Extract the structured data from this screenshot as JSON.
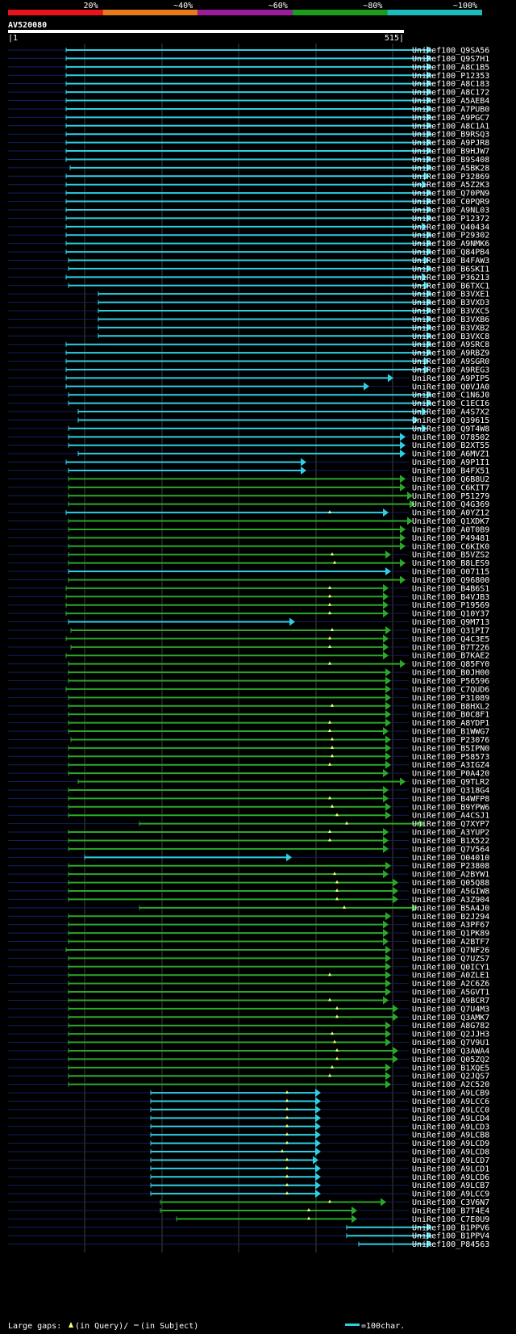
{
  "query": {
    "name": "AV520080",
    "start_label": "1",
    "end_label": "515",
    "length": 515
  },
  "legend_bar": {
    "labels": [
      "20%",
      "~40%",
      "~60%",
      "~80%",
      "~100%"
    ],
    "colors": [
      "#e8141c",
      "#e87a1c",
      "#9c1c9c",
      "#1c9c1c",
      "#1cbcbc"
    ]
  },
  "identity_colors": {
    "cyan": "#2ecfe6",
    "green": "#2aa82a",
    "gap_marker": "#ffff80",
    "row_line": "#102060",
    "grid": "#404040"
  },
  "footer": {
    "gaps_prefix": "Large gaps:",
    "in_query": "(in Query)/",
    "in_subject": "(in Subject)",
    "scale_text": "=100char."
  },
  "hits": [
    {
      "name": "UniRef100_Q9SA56",
      "s": 82,
      "e": 530,
      "c": "cyan"
    },
    {
      "name": "UniRef100_Q9S7H1",
      "s": 82,
      "e": 530,
      "c": "cyan"
    },
    {
      "name": "UniRef100_A8C1B5",
      "s": 82,
      "e": 530,
      "c": "cyan"
    },
    {
      "name": "UniRef100_P12353",
      "s": 82,
      "e": 530,
      "c": "cyan"
    },
    {
      "name": "UniRef100_A8C183",
      "s": 82,
      "e": 530,
      "c": "cyan"
    },
    {
      "name": "UniRef100_A8C172",
      "s": 82,
      "e": 530,
      "c": "cyan"
    },
    {
      "name": "UniRef100_A5AEB4",
      "s": 82,
      "e": 530,
      "c": "cyan"
    },
    {
      "name": "UniRef100_A7PUB0",
      "s": 82,
      "e": 530,
      "c": "cyan"
    },
    {
      "name": "UniRef100_A9PGC7",
      "s": 82,
      "e": 530,
      "c": "cyan"
    },
    {
      "name": "UniRef100_A8C1A1",
      "s": 82,
      "e": 530,
      "c": "cyan"
    },
    {
      "name": "UniRef100_B9RSQ3",
      "s": 82,
      "e": 530,
      "c": "cyan"
    },
    {
      "name": "UniRef100_A9PJR8",
      "s": 82,
      "e": 530,
      "c": "cyan"
    },
    {
      "name": "UniRef100_B9HJW7",
      "s": 82,
      "e": 530,
      "c": "cyan"
    },
    {
      "name": "UniRef100_B9S408",
      "s": 82,
      "e": 530,
      "c": "cyan"
    },
    {
      "name": "UniRef100_A5BK28",
      "s": 87,
      "e": 530,
      "c": "cyan"
    },
    {
      "name": "UniRef100_P32869",
      "s": 82,
      "e": 527,
      "c": "cyan"
    },
    {
      "name": "UniRef100_A5Z2K3",
      "s": 82,
      "e": 524,
      "c": "cyan"
    },
    {
      "name": "UniRef100_Q70PN9",
      "s": 82,
      "e": 530,
      "c": "cyan"
    },
    {
      "name": "UniRef100_C0PQR9",
      "s": 82,
      "e": 530,
      "c": "cyan"
    },
    {
      "name": "UniRef100_A9NL03",
      "s": 82,
      "e": 530,
      "c": "cyan"
    },
    {
      "name": "UniRef100_P12372",
      "s": 82,
      "e": 530,
      "c": "cyan"
    },
    {
      "name": "UniRef100_Q40434",
      "s": 82,
      "e": 524,
      "c": "cyan"
    },
    {
      "name": "UniRef100_P29302",
      "s": 82,
      "e": 530,
      "c": "cyan"
    },
    {
      "name": "UniRef100_A9NMK6",
      "s": 82,
      "e": 530,
      "c": "cyan"
    },
    {
      "name": "UniRef100_Q84PB4",
      "s": 82,
      "e": 530,
      "c": "cyan"
    },
    {
      "name": "UniRef100_B4FAW3",
      "s": 85,
      "e": 527,
      "c": "cyan"
    },
    {
      "name": "UniRef100_B6SKI1",
      "s": 85,
      "e": 530,
      "c": "cyan"
    },
    {
      "name": "UniRef100_P36213",
      "s": 82,
      "e": 524,
      "c": "cyan"
    },
    {
      "name": "UniRef100_B6TXC1",
      "s": 85,
      "e": 527,
      "c": "cyan"
    },
    {
      "name": "UniRef100_B3VXE1",
      "s": 122,
      "e": 530,
      "c": "cyan"
    },
    {
      "name": "UniRef100_B3VXD3",
      "s": 122,
      "e": 530,
      "c": "cyan"
    },
    {
      "name": "UniRef100_B3VXC5",
      "s": 122,
      "e": 530,
      "c": "cyan"
    },
    {
      "name": "UniRef100_B3VXB6",
      "s": 122,
      "e": 530,
      "c": "cyan"
    },
    {
      "name": "UniRef100_B3VXB2",
      "s": 122,
      "e": 530,
      "c": "cyan"
    },
    {
      "name": "UniRef100_B3VXC8",
      "s": 122,
      "e": 530,
      "c": "cyan"
    },
    {
      "name": "UniRef100_A9SRC8",
      "s": 82,
      "e": 530,
      "c": "cyan"
    },
    {
      "name": "UniRef100_A9RBZ9",
      "s": 82,
      "e": 530,
      "c": "cyan"
    },
    {
      "name": "UniRef100_A9SGR0",
      "s": 82,
      "e": 527,
      "c": "cyan"
    },
    {
      "name": "UniRef100_A9REG3",
      "s": 82,
      "e": 527,
      "c": "cyan"
    },
    {
      "name": "UniRef100_A9PIP5",
      "s": 82,
      "e": 482,
      "c": "cyan"
    },
    {
      "name": "UniRef100_Q0VJA0",
      "s": 82,
      "e": 452,
      "c": "cyan"
    },
    {
      "name": "UniRef100_C1N6J0",
      "s": 85,
      "e": 530,
      "c": "cyan"
    },
    {
      "name": "UniRef100_C1ECI6",
      "s": 85,
      "e": 530,
      "c": "cyan"
    },
    {
      "name": "UniRef100_A4S7X2",
      "s": 97,
      "e": 524,
      "c": "cyan"
    },
    {
      "name": "UniRef100_Q39615",
      "s": 97,
      "e": 513,
      "c": "cyan"
    },
    {
      "name": "UniRef100_Q9T4W8",
      "s": 85,
      "e": 524,
      "c": "cyan"
    },
    {
      "name": "UniRef100_O78502",
      "s": 85,
      "e": 497,
      "c": "cyan"
    },
    {
      "name": "UniRef100_B2XT55",
      "s": 85,
      "e": 497,
      "c": "cyan"
    },
    {
      "name": "UniRef100_A6MVZ1",
      "s": 97,
      "e": 497,
      "c": "cyan"
    },
    {
      "name": "UniRef100_A9P1I1",
      "s": 82,
      "e": 374,
      "c": "cyan"
    },
    {
      "name": "UniRef100_B4FX51",
      "s": 85,
      "e": 374,
      "c": "cyan"
    },
    {
      "name": "UniRef100_Q6B8U2",
      "s": 85,
      "e": 497,
      "c": "green"
    },
    {
      "name": "UniRef100_C6KIT7",
      "s": 85,
      "e": 497,
      "c": "green"
    },
    {
      "name": "UniRef100_P51279",
      "s": 85,
      "e": 506,
      "c": "green"
    },
    {
      "name": "UniRef100_Q4G369",
      "s": 85,
      "e": 509,
      "c": "green"
    },
    {
      "name": "UniRef100_A0YZ12",
      "s": 82,
      "e": 476,
      "c": "cyan",
      "gap": 409
    },
    {
      "name": "UniRef100_Q1XDK7",
      "s": 85,
      "e": 506,
      "c": "green"
    },
    {
      "name": "UniRef100_A0T0B9",
      "s": 85,
      "e": 497,
      "c": "green"
    },
    {
      "name": "UniRef100_P49481",
      "s": 85,
      "e": 497,
      "c": "green"
    },
    {
      "name": "UniRef100_C6KIK0",
      "s": 85,
      "e": 497,
      "c": "green"
    },
    {
      "name": "UniRef100_B5VZS2",
      "s": 85,
      "e": 479,
      "c": "green",
      "gap": 412
    },
    {
      "name": "UniRef100_B8LES9",
      "s": 85,
      "e": 497,
      "c": "green",
      "gap": 415
    },
    {
      "name": "UniRef100_O07115",
      "s": 85,
      "e": 479,
      "c": "cyan"
    },
    {
      "name": "UniRef100_Q96800",
      "s": 85,
      "e": 497,
      "c": "green"
    },
    {
      "name": "UniRef100_B4B6S1",
      "s": 82,
      "e": 476,
      "c": "green",
      "gap": 409
    },
    {
      "name": "UniRef100_B4VJB3",
      "s": 82,
      "e": 476,
      "c": "green",
      "gap": 409
    },
    {
      "name": "UniRef100_P19569",
      "s": 82,
      "e": 476,
      "c": "green",
      "gap": 409
    },
    {
      "name": "UniRef100_Q10Y37",
      "s": 82,
      "e": 476,
      "c": "green",
      "gap": 409
    },
    {
      "name": "UniRef100_Q9M713",
      "s": 85,
      "e": 360,
      "c": "cyan"
    },
    {
      "name": "UniRef100_Q31PI7",
      "s": 88,
      "e": 479,
      "c": "green",
      "gap": 412
    },
    {
      "name": "UniRef100_Q4C3E5",
      "s": 82,
      "e": 476,
      "c": "green",
      "gap": 409
    },
    {
      "name": "UniRef100_B7T226",
      "s": 88,
      "e": 476,
      "c": "green",
      "gap": 409
    },
    {
      "name": "UniRef100_B7KAE2",
      "s": 82,
      "e": 476,
      "c": "green"
    },
    {
      "name": "UniRef100_Q85FY0",
      "s": 85,
      "e": 497,
      "c": "green",
      "gap": 409
    },
    {
      "name": "UniRef100_B0JH00",
      "s": 85,
      "e": 479,
      "c": "green"
    },
    {
      "name": "UniRef100_P56596",
      "s": 85,
      "e": 479,
      "c": "green"
    },
    {
      "name": "UniRef100_C7QUD6",
      "s": 82,
      "e": 479,
      "c": "green"
    },
    {
      "name": "UniRef100_P31089",
      "s": 85,
      "e": 479,
      "c": "green"
    },
    {
      "name": "UniRef100_B8HXL2",
      "s": 85,
      "e": 479,
      "c": "green",
      "gap": 412
    },
    {
      "name": "UniRef100_B0C8F1",
      "s": 85,
      "e": 479,
      "c": "green"
    },
    {
      "name": "UniRef100_A8YDP1",
      "s": 85,
      "e": 479,
      "c": "green",
      "gap": 409
    },
    {
      "name": "UniRef100_B1WWG7",
      "s": 85,
      "e": 476,
      "c": "green",
      "gap": 409
    },
    {
      "name": "UniRef100_P23076",
      "s": 88,
      "e": 479,
      "c": "green",
      "gap": 412
    },
    {
      "name": "UniRef100_B5IPN0",
      "s": 85,
      "e": 479,
      "c": "green",
      "gap": 412
    },
    {
      "name": "UniRef100_P58573",
      "s": 85,
      "e": 479,
      "c": "green",
      "gap": 412
    },
    {
      "name": "UniRef100_A3IGZ4",
      "s": 85,
      "e": 479,
      "c": "green",
      "gap": 409
    },
    {
      "name": "UniRef100_P0A420",
      "s": 85,
      "e": 476,
      "c": "green"
    },
    {
      "name": "UniRef100_Q9TLR2",
      "s": 97,
      "e": 497,
      "c": "green"
    },
    {
      "name": "UniRef100_Q318G4",
      "s": 85,
      "e": 476,
      "c": "green"
    },
    {
      "name": "UniRef100_B4WFP8",
      "s": 85,
      "e": 476,
      "c": "green",
      "gap": 409
    },
    {
      "name": "UniRef100_B9YPW6",
      "s": 85,
      "e": 479,
      "c": "green",
      "gap": 412
    },
    {
      "name": "UniRef100_A4CSJ1",
      "s": 85,
      "e": 479,
      "c": "green",
      "gap": 418
    },
    {
      "name": "UniRef100_Q7XYP7",
      "s": 173,
      "e": 521,
      "c": "green",
      "gap": 430
    },
    {
      "name": "UniRef100_A3YUP2",
      "s": 85,
      "e": 476,
      "c": "green",
      "gap": 409
    },
    {
      "name": "UniRef100_B1X522",
      "s": 85,
      "e": 476,
      "c": "green",
      "gap": 409
    },
    {
      "name": "UniRef100_Q7V564",
      "s": 85,
      "e": 476,
      "c": "green"
    },
    {
      "name": "UniRef100_O04010",
      "s": 105,
      "e": 356,
      "c": "cyan"
    },
    {
      "name": "UniRef100_P23808",
      "s": 85,
      "e": 479,
      "c": "green"
    },
    {
      "name": "UniRef100_A2BYW1",
      "s": 85,
      "e": 476,
      "c": "green",
      "gap": 415
    },
    {
      "name": "UniRef100_Q05Q88",
      "s": 85,
      "e": 488,
      "c": "green",
      "gap": 418
    },
    {
      "name": "UniRef100_A5GIW8",
      "s": 85,
      "e": 488,
      "c": "green",
      "gap": 418
    },
    {
      "name": "UniRef100_A3Z904",
      "s": 85,
      "e": 488,
      "c": "green",
      "gap": 418
    },
    {
      "name": "UniRef100_B5A4J0",
      "s": 173,
      "e": 512,
      "c": "green",
      "gap": 427
    },
    {
      "name": "UniRef100_B2J294",
      "s": 85,
      "e": 479,
      "c": "green"
    },
    {
      "name": "UniRef100_A3PF67",
      "s": 85,
      "e": 476,
      "c": "green"
    },
    {
      "name": "UniRef100_Q1PK89",
      "s": 85,
      "e": 476,
      "c": "green"
    },
    {
      "name": "UniRef100_A2BTF7",
      "s": 85,
      "e": 476,
      "c": "green"
    },
    {
      "name": "UniRef100_Q7NF26",
      "s": 82,
      "e": 479,
      "c": "green"
    },
    {
      "name": "UniRef100_Q7UZS7",
      "s": 85,
      "e": 479,
      "c": "green"
    },
    {
      "name": "UniRef100_Q0ICY1",
      "s": 85,
      "e": 479,
      "c": "green"
    },
    {
      "name": "UniRef100_A0ZLE1",
      "s": 85,
      "e": 479,
      "c": "green",
      "gap": 409
    },
    {
      "name": "UniRef100_A2C6Z6",
      "s": 85,
      "e": 479,
      "c": "green"
    },
    {
      "name": "UniRef100_A5GVT1",
      "s": 85,
      "e": 479,
      "c": "green"
    },
    {
      "name": "UniRef100_A9BCR7",
      "s": 85,
      "e": 476,
      "c": "green",
      "gap": 409
    },
    {
      "name": "UniRef100_Q7U4M3",
      "s": 85,
      "e": 488,
      "c": "green",
      "gap": 418
    },
    {
      "name": "UniRef100_Q3AMK7",
      "s": 85,
      "e": 488,
      "c": "green",
      "gap": 418
    },
    {
      "name": "UniRef100_A8G782",
      "s": 85,
      "e": 479,
      "c": "green"
    },
    {
      "name": "UniRef100_Q2JJH3",
      "s": 85,
      "e": 479,
      "c": "green",
      "gap": 412
    },
    {
      "name": "UniRef100_Q7V9U1",
      "s": 85,
      "e": 479,
      "c": "green",
      "gap": 415
    },
    {
      "name": "UniRef100_Q3AWA4",
      "s": 85,
      "e": 488,
      "c": "green",
      "gap": 418
    },
    {
      "name": "UniRef100_Q05ZQ2",
      "s": 85,
      "e": 488,
      "c": "green",
      "gap": 418
    },
    {
      "name": "UniRef100_B1XQE5",
      "s": 85,
      "e": 479,
      "c": "green",
      "gap": 412
    },
    {
      "name": "UniRef100_Q2JQS7",
      "s": 85,
      "e": 479,
      "c": "green",
      "gap": 409
    },
    {
      "name": "UniRef100_A2C520",
      "s": 85,
      "e": 479,
      "c": "green"
    },
    {
      "name": "UniRef100_A9LCB9",
      "s": 187,
      "e": 392,
      "c": "cyan",
      "gap": 356
    },
    {
      "name": "UniRef100_A9LCC6",
      "s": 187,
      "e": 392,
      "c": "cyan",
      "gap": 356
    },
    {
      "name": "UniRef100_A9LCC0",
      "s": 187,
      "e": 392,
      "c": "cyan",
      "gap": 356
    },
    {
      "name": "UniRef100_A9LCD4",
      "s": 187,
      "e": 392,
      "c": "cyan",
      "gap": 356
    },
    {
      "name": "UniRef100_A9LCD3",
      "s": 187,
      "e": 392,
      "c": "cyan",
      "gap": 356
    },
    {
      "name": "UniRef100_A9LCB8",
      "s": 187,
      "e": 392,
      "c": "cyan",
      "gap": 356
    },
    {
      "name": "UniRef100_A9LCD9",
      "s": 187,
      "e": 392,
      "c": "cyan",
      "gap": 356
    },
    {
      "name": "UniRef100_A9LCD8",
      "s": 187,
      "e": 392,
      "c": "cyan",
      "gap": 350
    },
    {
      "name": "UniRef100_A9LCD7",
      "s": 187,
      "e": 389,
      "c": "cyan",
      "gap": 356
    },
    {
      "name": "UniRef100_A9LCD1",
      "s": 187,
      "e": 392,
      "c": "cyan",
      "gap": 356
    },
    {
      "name": "UniRef100_A9LCD6",
      "s": 187,
      "e": 392,
      "c": "cyan",
      "gap": 356
    },
    {
      "name": "UniRef100_A9LCB7",
      "s": 187,
      "e": 392,
      "c": "cyan",
      "gap": 356
    },
    {
      "name": "UniRef100_A9LCC9",
      "s": 187,
      "e": 392,
      "c": "cyan",
      "gap": 356
    },
    {
      "name": "UniRef100_C3V6N7",
      "s": 199,
      "e": 473,
      "c": "green",
      "gap": 409
    },
    {
      "name": "UniRef100_B7T4E4",
      "s": 199,
      "e": 437,
      "c": "green",
      "gap": 383
    },
    {
      "name": "UniRef100_C7E0U9",
      "s": 219,
      "e": 437,
      "c": "green",
      "gap": 383
    },
    {
      "name": "UniRef100_B1PPV6",
      "s": 430,
      "e": 530,
      "c": "cyan"
    },
    {
      "name": "UniRef100_B1PPV4",
      "s": 430,
      "e": 530,
      "c": "cyan"
    },
    {
      "name": "UniRef100_P84563",
      "s": 445,
      "e": 530,
      "c": "cyan"
    }
  ]
}
